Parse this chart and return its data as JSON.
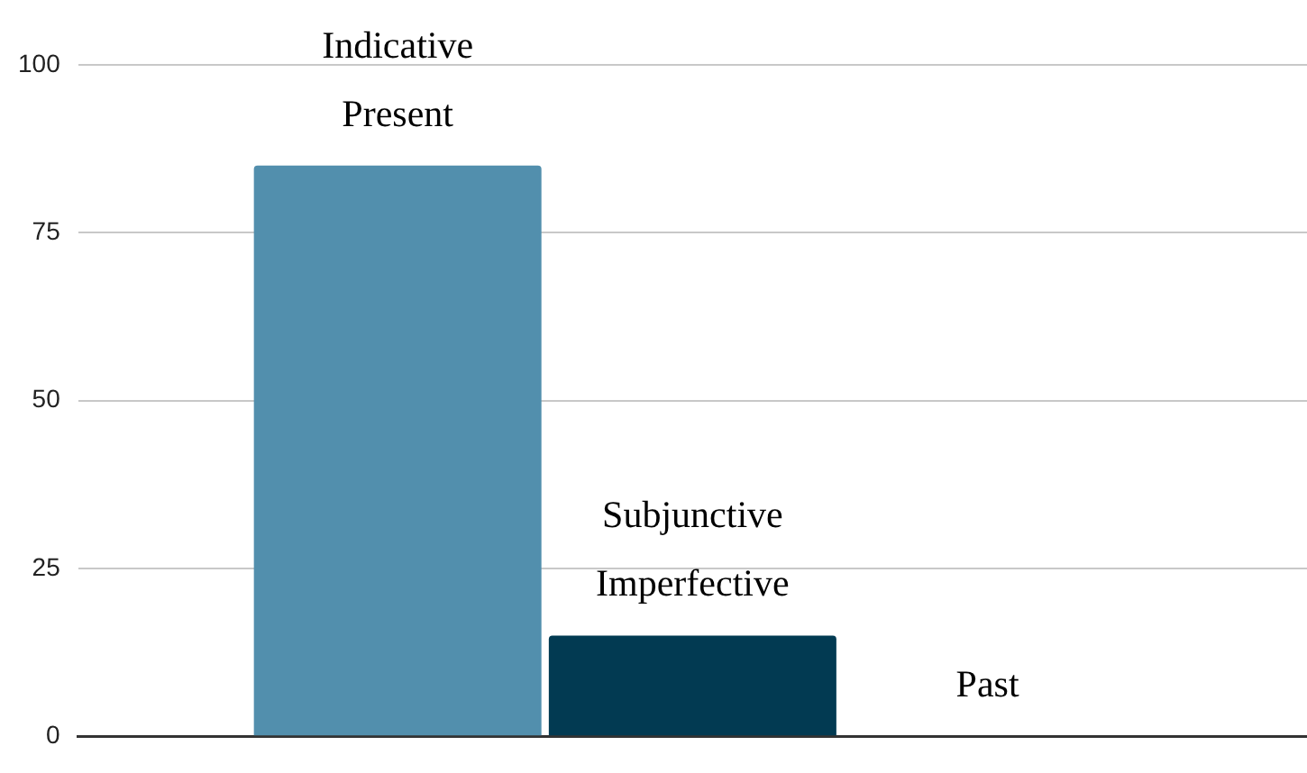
{
  "chart_data": {
    "type": "bar",
    "categories": [
      null
    ],
    "series": [
      {
        "name": "Indicative Present",
        "color": "#528fad",
        "values": [
          85
        ]
      },
      {
        "name": "Subjunctive Imperfective",
        "color": "#023a52",
        "values": [
          15
        ]
      },
      {
        "name": "Past",
        "values": [
          0
        ]
      }
    ],
    "ylim": [
      0,
      100
    ],
    "yticks": [
      0,
      25,
      50,
      75,
      100
    ],
    "grid": "y",
    "legend": false
  }
}
